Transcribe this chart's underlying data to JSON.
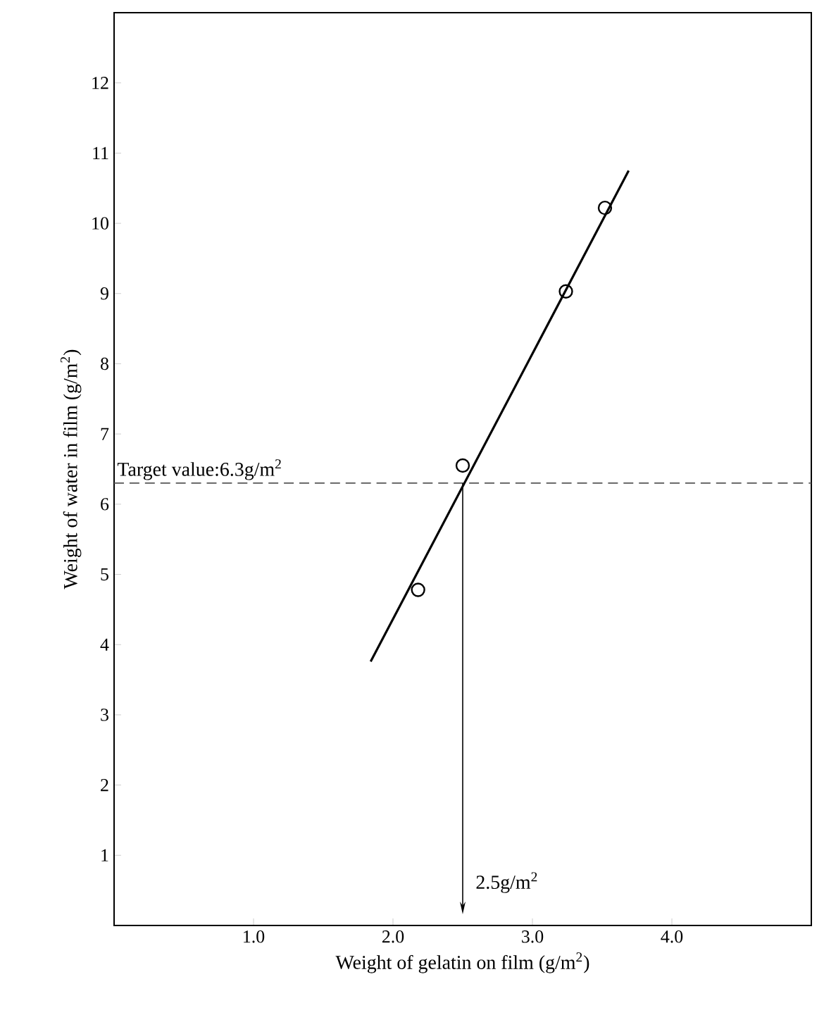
{
  "chart_data": {
    "type": "scatter",
    "xlabel": "Weight of gelatin on film (g/m$^{2}$)",
    "ylabel": "Weight of water in film (g/m$^{2}$)",
    "xlim": [
      0,
      5
    ],
    "ylim": [
      0,
      13
    ],
    "xticks": [
      {
        "value": 1,
        "label": "1.0"
      },
      {
        "value": 2,
        "label": "2.0"
      },
      {
        "value": 3,
        "label": "3.0"
      },
      {
        "value": 4,
        "label": "4.0"
      }
    ],
    "yticks": [
      1,
      2,
      3,
      4,
      5,
      6,
      7,
      8,
      9,
      10,
      11,
      12
    ],
    "series": [
      {
        "marker": "circle",
        "color": "#000000",
        "x": [
          2.18,
          2.5,
          3.24,
          3.52
        ],
        "values": [
          4.78,
          6.55,
          9.03,
          10.22
        ]
      },
      {
        "type": "line",
        "color": "#000000",
        "x": [
          1.84,
          3.69
        ],
        "values": [
          3.76,
          10.75
        ]
      }
    ],
    "ref_lines": [
      {
        "axis": "y",
        "value": 6.3,
        "label": "Target value:6.3g/m$^{2}$",
        "color": "#555555",
        "line_style": "dashed"
      },
      {
        "axis": "x",
        "value": 2.5,
        "label": "2.5g/m$^{2}$",
        "color": "#000000",
        "line_style": "solid"
      }
    ]
  }
}
